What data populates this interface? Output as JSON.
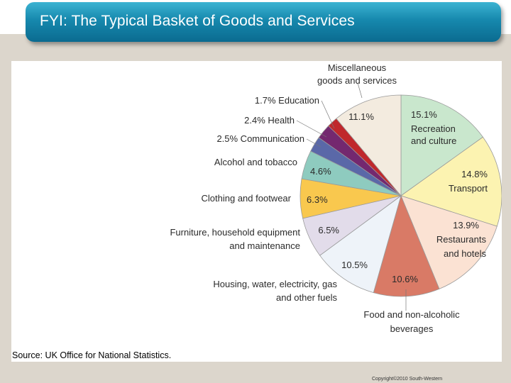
{
  "slide": {
    "title": "FYI: The Typical Basket of Goods and Services",
    "source": "Source: UK Office for National Statistics.",
    "copyright": "Copyright©2010 South-Western"
  },
  "chart_data": {
    "type": "pie",
    "title": "",
    "slices": [
      {
        "label_lines": [
          "Recreation",
          "and culture"
        ],
        "value": 15.1,
        "display": "15.1%",
        "color": "#c9e7cd"
      },
      {
        "label_lines": [
          "Transport"
        ],
        "value": 14.8,
        "display": "14.8%",
        "color": "#fcf3b1"
      },
      {
        "label_lines": [
          "Restaurants",
          "and hotels"
        ],
        "value": 13.9,
        "display": "13.9%",
        "color": "#fbe2d3"
      },
      {
        "label_lines": [
          "Food and non-alcoholic",
          "beverages"
        ],
        "value": 10.6,
        "display": "10.6%",
        "color": "#d97a66"
      },
      {
        "label_lines": [
          "Housing, water, electricity, gas",
          "and other fuels"
        ],
        "value": 10.5,
        "display": "10.5%",
        "color": "#eef3f9"
      },
      {
        "label_lines": [
          "Furniture, household equipment",
          "and maintenance"
        ],
        "value": 6.5,
        "display": "6.5%",
        "color": "#e2dcea"
      },
      {
        "label_lines": [
          "Clothing and footwear"
        ],
        "value": 6.3,
        "display": "6.3%",
        "color": "#f9c84e"
      },
      {
        "label_lines": [
          "Alcohol and tobacco"
        ],
        "value": 4.6,
        "display": "4.6%",
        "color": "#8ecbbf"
      },
      {
        "label_lines": [
          "Communication"
        ],
        "value": 2.5,
        "display": "2.5%",
        "color": "#5a68a8"
      },
      {
        "label_lines": [
          "Health"
        ],
        "value": 2.4,
        "display": "2.4%",
        "color": "#74286f"
      },
      {
        "label_lines": [
          "Education"
        ],
        "value": 1.7,
        "display": "1.7%",
        "color": "#c0282c"
      },
      {
        "label_lines": [
          "Miscellaneous",
          "goods and services"
        ],
        "value": 11.1,
        "display": "11.1%",
        "color": "#f3ebdf"
      }
    ]
  }
}
